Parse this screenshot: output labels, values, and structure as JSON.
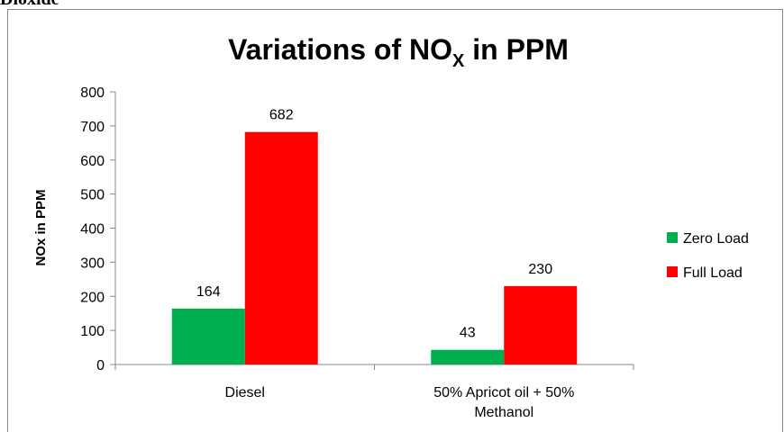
{
  "heading": "Dioxide",
  "chart_data": {
    "type": "bar",
    "title": [
      "Variations of NO",
      "X",
      " in PPM"
    ],
    "y_label": "NOx in PPM",
    "categories": [
      "Diesel",
      "50% Apricot oil + 50% Methanol"
    ],
    "series": [
      {
        "name": "Zero Load",
        "color": "#00b050",
        "values": [
          164,
          43
        ]
      },
      {
        "name": "Full Load",
        "color": "#ff0000",
        "values": [
          682,
          230
        ]
      }
    ],
    "ylim": [
      0,
      800
    ],
    "yticks": [
      0,
      100,
      200,
      300,
      400,
      500,
      600,
      700,
      800
    ],
    "grid": false,
    "legend": "right"
  }
}
